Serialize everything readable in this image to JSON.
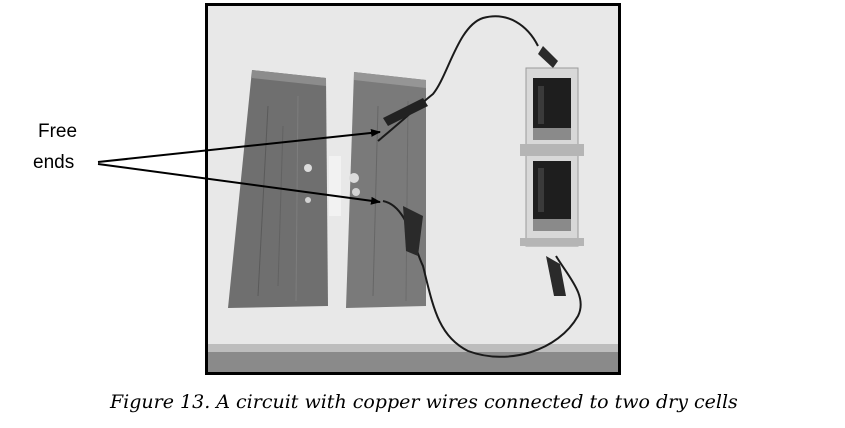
{
  "figure": {
    "annotation": {
      "line1": "Free",
      "line2": "ends"
    },
    "caption": "Figure 13. A circuit with copper wires connected to two dry cells"
  }
}
